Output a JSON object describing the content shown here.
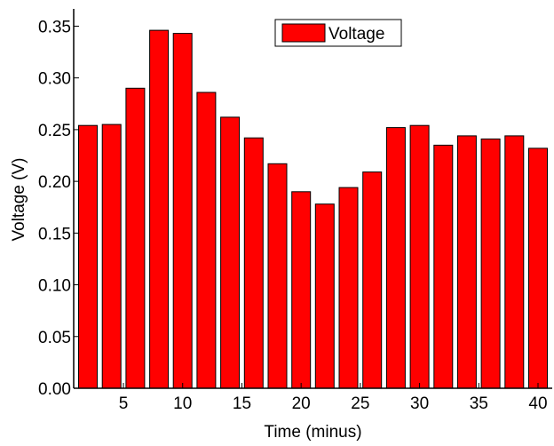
{
  "chart_data": {
    "type": "bar",
    "x": [
      2,
      4,
      6,
      8,
      10,
      12,
      14,
      16,
      18,
      20,
      22,
      24,
      26,
      28,
      30,
      32,
      34,
      36,
      38,
      40
    ],
    "series": [
      {
        "name": "Voltage",
        "color": "#ff0000",
        "values": [
          0.254,
          0.255,
          0.29,
          0.346,
          0.343,
          0.286,
          0.262,
          0.242,
          0.217,
          0.19,
          0.178,
          0.194,
          0.209,
          0.252,
          0.254,
          0.235,
          0.244,
          0.241,
          0.244,
          0.232
        ]
      }
    ],
    "xlabel": "Time (minus)",
    "ylabel": "Voltage (V)",
    "xlim": [
      0.8,
      41.2
    ],
    "ylim": [
      0,
      0.365
    ],
    "xticks": [
      5,
      10,
      15,
      20,
      25,
      30,
      35,
      40
    ],
    "yticks": [
      0.0,
      0.05,
      0.1,
      0.15,
      0.2,
      0.25,
      0.3,
      0.35
    ],
    "ytick_labels": [
      "0.00",
      "0.05",
      "0.10",
      "0.15",
      "0.20",
      "0.25",
      "0.30",
      "0.35"
    ],
    "grid": false,
    "legend": "top-center"
  }
}
